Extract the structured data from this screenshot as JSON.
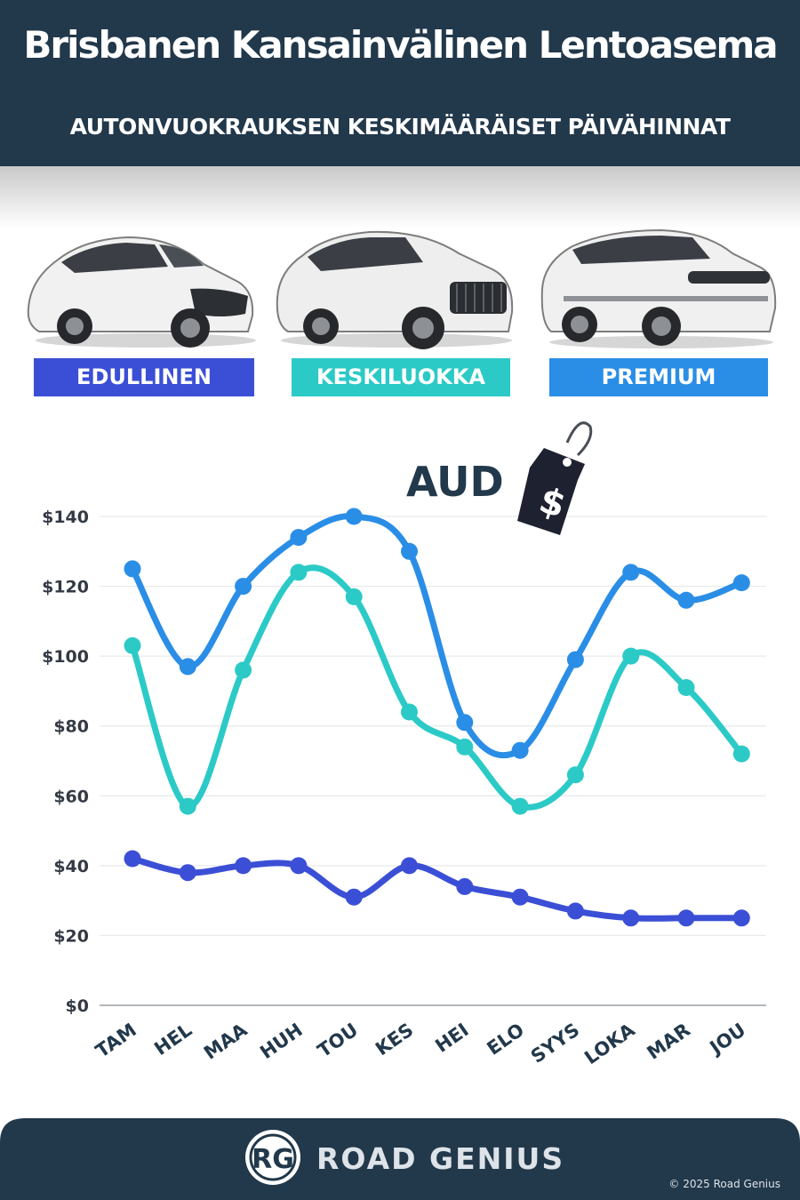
{
  "header": {
    "title": "Brisbanen Kansainvälinen Lentoasema",
    "subtitle": "AUTONVUOKRAUKSEN KESKIMÄÄRÄISET PÄIVÄHINNAT"
  },
  "categories": {
    "economy": "EDULLINEN",
    "midsize": "KESKILUOKKA",
    "premium": "PREMIUM"
  },
  "colors": {
    "economy": "#3b4fd6",
    "midsize": "#2ccac7",
    "premium": "#2a8ee6",
    "navy": "#22384b"
  },
  "currency_tag": {
    "label": "AUD",
    "symbol": "$"
  },
  "footer": {
    "brand": "ROAD GENIUS",
    "logo": "RG",
    "copyright": "© 2025 Road Genius"
  },
  "chart_data": {
    "type": "line",
    "categories": [
      "TAM",
      "HEL",
      "MAA",
      "HUH",
      "TOU",
      "KES",
      "HEI",
      "ELO",
      "SYYS",
      "LOKA",
      "MAR",
      "JOU"
    ],
    "y_ticks": [
      "$0",
      "$20",
      "$40",
      "$60",
      "$80",
      "$100",
      "$120",
      "$140"
    ],
    "ylim": [
      0,
      140
    ],
    "grid": true,
    "series": [
      {
        "name": "EDULLINEN",
        "color": "#3b4fd6",
        "values": [
          42,
          38,
          40,
          40,
          31,
          40,
          34,
          31,
          27,
          25,
          25,
          25
        ]
      },
      {
        "name": "KESKILUOKKA",
        "color": "#2ccac7",
        "values": [
          103,
          57,
          96,
          124,
          117,
          84,
          74,
          57,
          66,
          100,
          91,
          72
        ]
      },
      {
        "name": "PREMIUM",
        "color": "#2a8ee6",
        "values": [
          125,
          97,
          120,
          134,
          140,
          130,
          81,
          73,
          99,
          124,
          116,
          121
        ]
      }
    ]
  }
}
